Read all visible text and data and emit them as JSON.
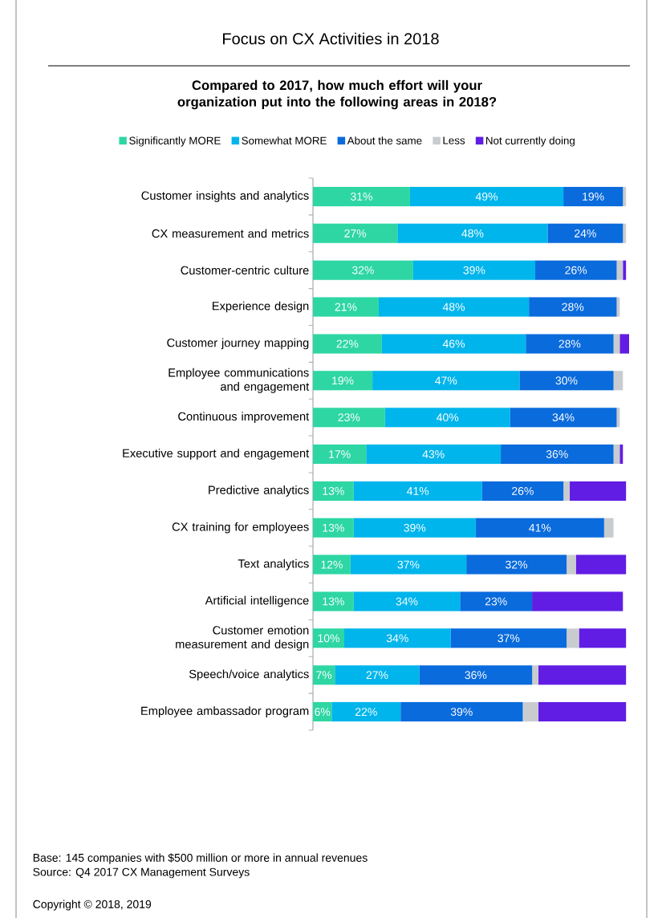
{
  "chart_data": {
    "type": "bar",
    "orientation": "horizontal",
    "stacked": true,
    "title": "Focus on CX Activities in 2018",
    "subtitle": "Compared to 2017, how much effort will your organization put into the following areas in 2018?",
    "legend": "top",
    "categories": [
      "Customer insights and analytics",
      "CX measurement and metrics",
      "Customer-centric culture",
      "Experience design",
      "Customer journey mapping",
      "Employee communications and engagement",
      "Continuous improvement",
      "Executive support and engagement",
      "Predictive analytics",
      "CX training for employees",
      "Text analytics",
      "Artificial intelligence",
      "Customer emotion measurement and design",
      "Speech/voice analytics",
      "Employee ambassador program"
    ],
    "series": [
      {
        "name": "Significantly MORE",
        "color": "#2ed6a4",
        "values": [
          31,
          27,
          32,
          21,
          22,
          19,
          23,
          17,
          13,
          13,
          12,
          13,
          10,
          7,
          6
        ],
        "value_labels": [
          "31%",
          "27%",
          "32%",
          "21%",
          "22%",
          "19%",
          "23%",
          "17%",
          "13%",
          "13%",
          "12%",
          "13%",
          "10%",
          "7%",
          "6%"
        ]
      },
      {
        "name": "Somewhat MORE",
        "color": "#00b5ec",
        "values": [
          49,
          48,
          39,
          48,
          46,
          47,
          40,
          43,
          41,
          39,
          37,
          34,
          34,
          27,
          22
        ],
        "value_labels": [
          "49%",
          "48%",
          "39%",
          "48%",
          "46%",
          "47%",
          "40%",
          "43%",
          "41%",
          "39%",
          "37%",
          "34%",
          "34%",
          "27%",
          "22%"
        ]
      },
      {
        "name": "About the same",
        "color": "#0a6bdc",
        "values": [
          19,
          24,
          26,
          28,
          28,
          30,
          34,
          36,
          26,
          41,
          32,
          23,
          37,
          36,
          39
        ],
        "value_labels": [
          "19%",
          "24%",
          "26%",
          "28%",
          "28%",
          "30%",
          "34%",
          "36%",
          "26%",
          "41%",
          "32%",
          "23%",
          "37%",
          "36%",
          "39%"
        ]
      },
      {
        "name": "Less",
        "color": "#c9cccf",
        "values": [
          1,
          1,
          2,
          1,
          2,
          3,
          1,
          2,
          2,
          3,
          3,
          0,
          4,
          2,
          5
        ]
      },
      {
        "name": "Not currently doing",
        "color": "#611de3",
        "values": [
          0,
          0,
          1,
          0,
          3,
          0,
          0,
          1,
          18,
          0,
          16,
          29,
          15,
          28,
          28
        ]
      }
    ],
    "annotations": [
      "Base:   145 companies with $500 million or more in annual revenues",
      "Source: Q4 2017 CX Management Surveys",
      "Copyright © 2018, 2019"
    ]
  }
}
